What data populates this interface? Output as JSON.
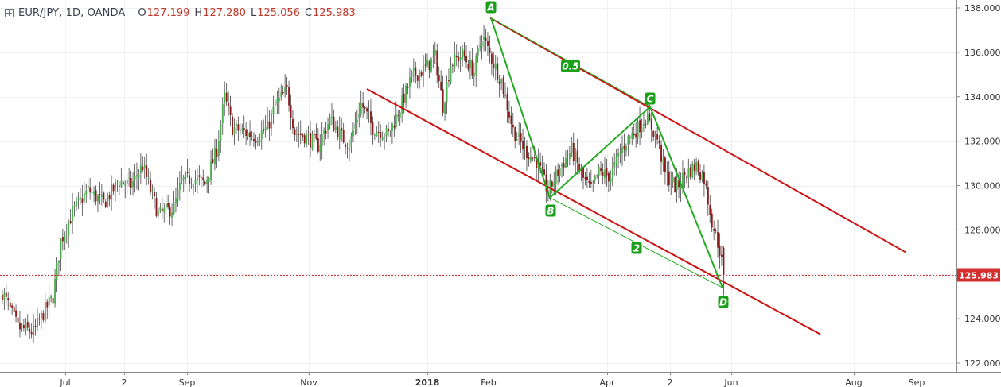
{
  "header": {
    "symbol": "EUR/JPY, 1D, OANDA",
    "open_label": "O",
    "open": "127.199",
    "high_label": "H",
    "high": "127.280",
    "low_label": "L",
    "low": "125.056",
    "close_label": "C",
    "close": "125.983"
  },
  "colors": {
    "bull": "#4caf50",
    "bear": "#8b1a1a",
    "channel": "#cc1111",
    "pattern": "#22aa22",
    "price_tag": "#d32f2f",
    "axis_text": "#333333"
  },
  "chart_data": {
    "type": "candlestick",
    "y_axis": {
      "ylim": [
        121.7,
        138.4
      ],
      "ticks": [
        "122.000",
        "124.000",
        "126.000",
        "128.000",
        "130.000",
        "132.000",
        "134.000",
        "136.000",
        "138.000"
      ],
      "position": "right"
    },
    "x_axis": {
      "ticks": [
        "Jul",
        "2",
        "Sep",
        "Nov",
        "2018",
        "Feb",
        "Apr",
        "2",
        "Jun",
        "Aug",
        "Sep"
      ]
    },
    "last_price": "125.983",
    "price_anchors": [
      [
        0,
        125.2
      ],
      [
        8,
        123.6
      ],
      [
        16,
        123.4
      ],
      [
        22,
        124.4
      ],
      [
        26,
        125.0
      ],
      [
        30,
        127.5
      ],
      [
        36,
        128.8
      ],
      [
        44,
        129.8
      ],
      [
        52,
        129.2
      ],
      [
        60,
        130.2
      ],
      [
        66,
        130.0
      ],
      [
        72,
        130.9
      ],
      [
        80,
        128.7
      ],
      [
        88,
        129.0
      ],
      [
        92,
        130.2
      ],
      [
        98,
        130.3
      ],
      [
        104,
        130.1
      ],
      [
        110,
        131.6
      ],
      [
        114,
        134.0
      ],
      [
        118,
        132.6
      ],
      [
        124,
        132.4
      ],
      [
        130,
        132.2
      ],
      [
        136,
        132.6
      ],
      [
        140,
        133.6
      ],
      [
        146,
        134.3
      ],
      [
        150,
        132.4
      ],
      [
        156,
        132.2
      ],
      [
        162,
        131.8
      ],
      [
        168,
        133.0
      ],
      [
        174,
        132.2
      ],
      [
        178,
        131.8
      ],
      [
        184,
        133.7
      ],
      [
        190,
        132.6
      ],
      [
        198,
        132.3
      ],
      [
        204,
        133.5
      ],
      [
        210,
        134.9
      ],
      [
        216,
        135.2
      ],
      [
        222,
        135.8
      ],
      [
        226,
        133.6
      ],
      [
        230,
        135.5
      ],
      [
        236,
        135.9
      ],
      [
        242,
        135.1
      ],
      [
        246,
        136.8
      ],
      [
        250,
        135.9
      ],
      [
        256,
        134.7
      ],
      [
        262,
        132.5
      ],
      [
        268,
        131.6
      ],
      [
        274,
        131.1
      ],
      [
        280,
        129.7
      ],
      [
        286,
        130.8
      ],
      [
        292,
        131.6
      ],
      [
        298,
        130.3
      ],
      [
        302,
        129.8
      ],
      [
        306,
        130.6
      ],
      [
        312,
        130.4
      ],
      [
        316,
        131.3
      ],
      [
        320,
        132.0
      ],
      [
        326,
        132.6
      ],
      [
        330,
        133.1
      ],
      [
        336,
        132.1
      ],
      [
        340,
        130.5
      ],
      [
        346,
        129.9
      ],
      [
        350,
        130.5
      ],
      [
        356,
        130.9
      ],
      [
        360,
        130.3
      ],
      [
        364,
        128.4
      ],
      [
        368,
        127.1
      ],
      [
        370,
        125.983
      ]
    ]
  },
  "annotations": {
    "point_labels": [
      "A",
      "B",
      "C",
      "D"
    ],
    "ratio_labels": [
      "0.5",
      "2"
    ]
  }
}
